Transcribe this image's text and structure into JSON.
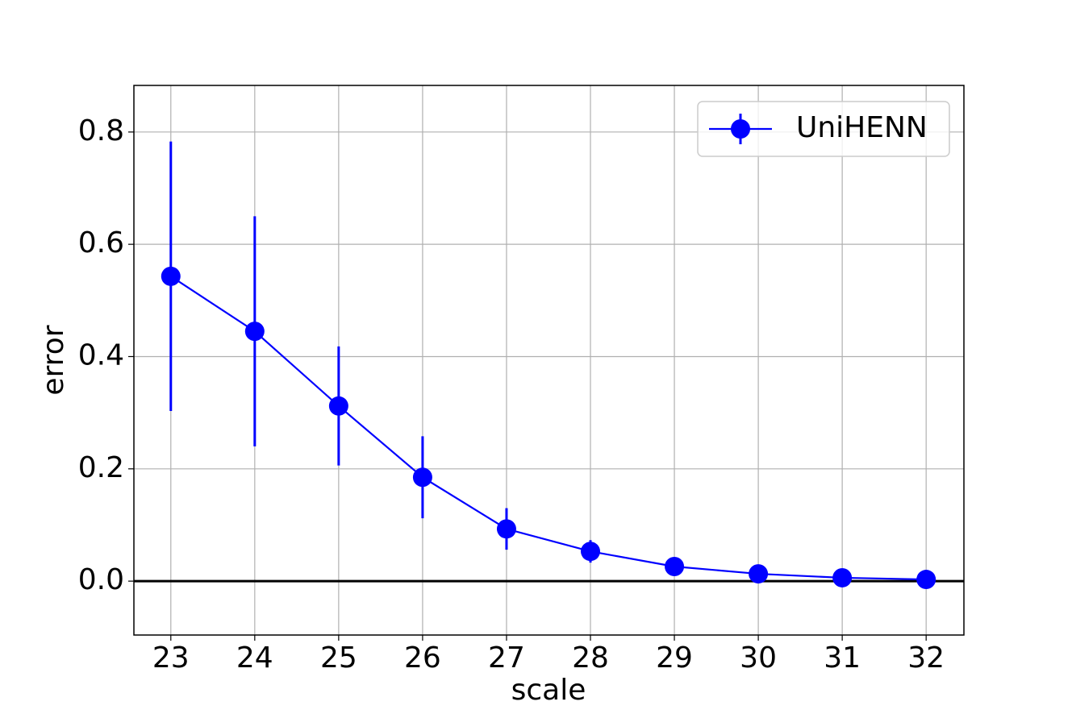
{
  "chart_data": {
    "type": "errorbar_line",
    "x_label": "scale",
    "y_label": "error",
    "x": [
      23,
      24,
      25,
      26,
      27,
      28,
      29,
      30,
      31,
      32
    ],
    "series": [
      {
        "name": "UniHENN",
        "color": "#0000ff",
        "values": [
          0.543,
          0.445,
          0.312,
          0.185,
          0.093,
          0.053,
          0.026,
          0.013,
          0.006,
          0.003
        ],
        "errors": [
          0.24,
          0.205,
          0.106,
          0.073,
          0.037,
          0.02,
          0.005,
          0.003,
          0.002,
          0.001
        ]
      }
    ],
    "xlim": [
      22.56,
      32.45
    ],
    "xticks": [
      23,
      24,
      25,
      26,
      27,
      28,
      29,
      30,
      31,
      32
    ],
    "ylim": [
      -0.096,
      0.883
    ],
    "yticks": [
      {
        "value": 0,
        "label": "0.0"
      },
      {
        "value": 0.2,
        "label": "0.2"
      },
      {
        "value": 0.4,
        "label": "0.4"
      },
      {
        "value": 0.6,
        "label": "0.6"
      },
      {
        "value": 0.8,
        "label": "0.8"
      }
    ],
    "hline": 0,
    "hline_color": "#000000",
    "grid": true,
    "legend": "upper right"
  }
}
